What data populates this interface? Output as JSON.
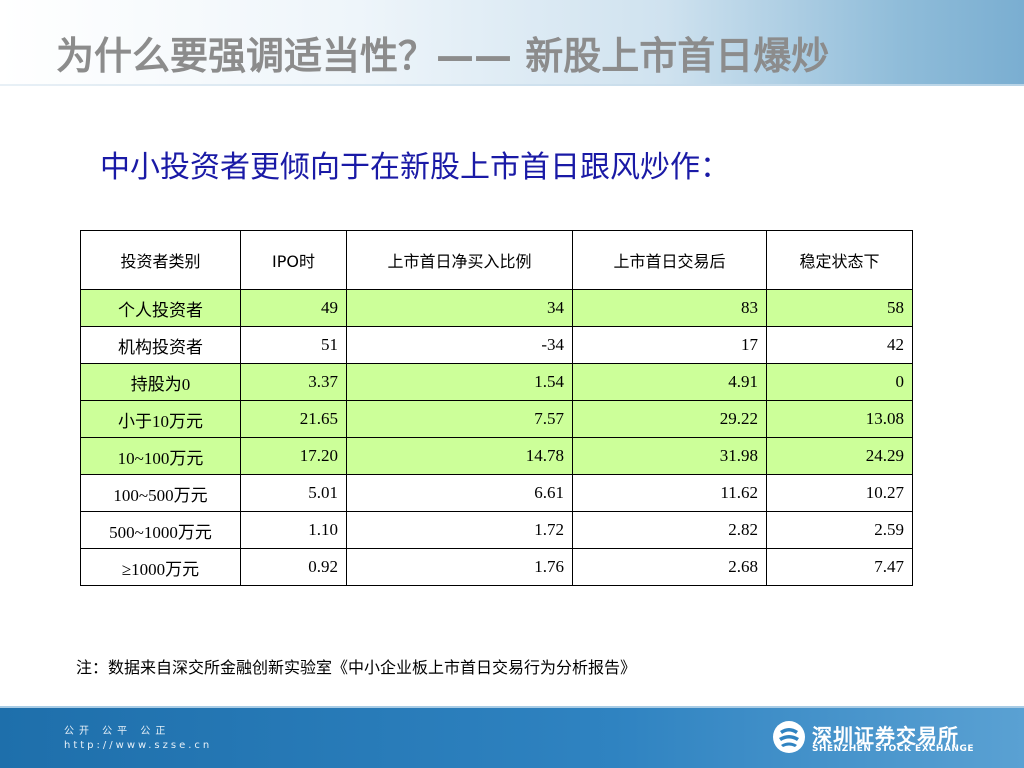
{
  "title": "为什么要强调适当性？——  新股上市首日爆炒",
  "subtitle": "中小投资者更倾向于在新股上市首日跟风炒作：",
  "table": {
    "headers": [
      "投资者类别",
      "IPO时",
      "上市首日净买入比例",
      "上市首日交易后",
      "稳定状态下"
    ],
    "rows": [
      {
        "category": "个人投资者",
        "ipo": "49",
        "net_buy": "34",
        "after_first_day": "83",
        "stable": "58",
        "highlight": true
      },
      {
        "category": "机构投资者",
        "ipo": "51",
        "net_buy": "-34",
        "after_first_day": "17",
        "stable": "42",
        "highlight": false
      },
      {
        "category": "持股为0",
        "ipo": "3.37",
        "net_buy": "1.54",
        "after_first_day": "4.91",
        "stable": "0",
        "highlight": true
      },
      {
        "category": "小于10万元",
        "ipo": "21.65",
        "net_buy": "7.57",
        "after_first_day": "29.22",
        "stable": "13.08",
        "highlight": true
      },
      {
        "category": "10~100万元",
        "ipo": "17.20",
        "net_buy": "14.78",
        "after_first_day": "31.98",
        "stable": "24.29",
        "highlight": true
      },
      {
        "category": "100~500万元",
        "ipo": "5.01",
        "net_buy": "6.61",
        "after_first_day": "11.62",
        "stable": "10.27",
        "highlight": false
      },
      {
        "category": "500~1000万元",
        "ipo": "1.10",
        "net_buy": "1.72",
        "after_first_day": "2.82",
        "stable": "2.59",
        "highlight": false
      },
      {
        "category": "≥1000万元",
        "ipo": "0.92",
        "net_buy": "1.76",
        "after_first_day": "2.68",
        "stable": "7.47",
        "highlight": false
      }
    ]
  },
  "note": "注：数据来自深交所金融创新实验室《中小企业板上市首日交易行为分析报告》",
  "footer": {
    "slogan": "公开 公平 公正",
    "url": "http://www.szse.cn",
    "logo_cn": "深圳证券交易所",
    "logo_en": "SHENZHEN STOCK EXCHANGE"
  },
  "colors": {
    "title": "#8c8c8c",
    "subtitle": "#1a1aa6",
    "highlight_row": "#ccff99",
    "footer": "#2f83c1"
  },
  "icons": {
    "logo": "szse-logo-icon"
  }
}
